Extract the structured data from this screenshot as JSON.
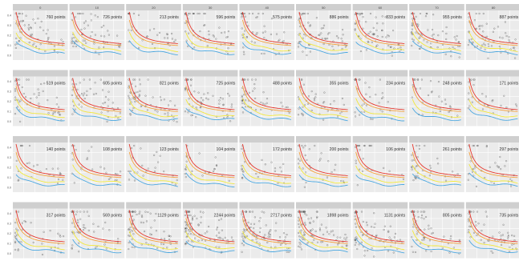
{
  "chart_data": {
    "type": "scatter",
    "title": "",
    "xlabel": "",
    "ylabel": "",
    "layout": {
      "rows": 4,
      "cols": 9
    },
    "y_ticks": [
      "0.4",
      "0.3",
      "0.2",
      "0.1",
      "0.0"
    ],
    "series": [
      {
        "name": "",
        "kind": "points",
        "color": "#333333"
      },
      {
        "name": "",
        "kind": "fit",
        "color": "#e8372c"
      },
      {
        "name": "",
        "kind": "fit",
        "color": "#f6a13b"
      },
      {
        "name": "",
        "kind": "fit",
        "color": "#f2e83a"
      },
      {
        "name": "",
        "kind": "fit",
        "color": "#4aa7e0"
      }
    ],
    "panels": [
      {
        "strip": "0",
        "count": "760 points"
      },
      {
        "strip": "10",
        "count": "726 points"
      },
      {
        "strip": "20",
        "count": "213 points"
      },
      {
        "strip": "30",
        "count": "596 points"
      },
      {
        "strip": "40",
        "count": "575 points"
      },
      {
        "strip": "50",
        "count": "886 points"
      },
      {
        "strip": "60",
        "count": "833 points"
      },
      {
        "strip": "70",
        "count": "955 points"
      },
      {
        "strip": "80",
        "count": "887 points"
      },
      {
        "strip": "",
        "count": "519 points"
      },
      {
        "strip": "",
        "count": "605 points"
      },
      {
        "strip": "",
        "count": "821 points"
      },
      {
        "strip": "",
        "count": "725 points"
      },
      {
        "strip": "",
        "count": "488 points"
      },
      {
        "strip": "",
        "count": "355 points"
      },
      {
        "strip": "",
        "count": "234 points"
      },
      {
        "strip": "",
        "count": "248 points"
      },
      {
        "strip": "",
        "count": "171 points"
      },
      {
        "strip": "",
        "count": "140 points"
      },
      {
        "strip": "",
        "count": "108 points"
      },
      {
        "strip": "",
        "count": "123 points"
      },
      {
        "strip": "",
        "count": "104 points"
      },
      {
        "strip": "",
        "count": "172 points"
      },
      {
        "strip": "",
        "count": "200 points"
      },
      {
        "strip": "",
        "count": "106 points"
      },
      {
        "strip": "",
        "count": "261 points"
      },
      {
        "strip": "",
        "count": "297 points"
      },
      {
        "strip": "",
        "count": "317 points"
      },
      {
        "strip": "",
        "count": "569 points"
      },
      {
        "strip": "",
        "count": "1129 points"
      },
      {
        "strip": "",
        "count": "2244 points"
      },
      {
        "strip": "",
        "count": "2717 points"
      },
      {
        "strip": "",
        "count": "1898 points"
      },
      {
        "strip": "",
        "count": "1131 points"
      },
      {
        "strip": "",
        "count": "805 points"
      },
      {
        "strip": "",
        "count": "735 points"
      }
    ]
  }
}
